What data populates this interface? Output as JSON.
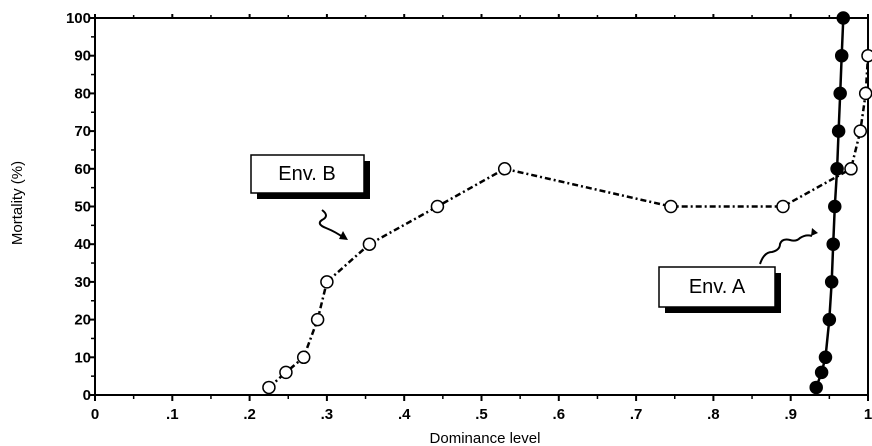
{
  "chart_data": {
    "type": "line",
    "xlabel": "Dominance level",
    "ylabel": "Mortality (%)",
    "xlim": [
      0,
      1
    ],
    "ylim": [
      0,
      100
    ],
    "x_ticks": [
      0,
      0.1,
      0.2,
      0.3,
      0.4,
      0.5,
      0.6,
      0.7,
      0.8,
      0.9,
      1
    ],
    "x_tick_labels": [
      "0",
      ".1",
      ".2",
      ".3",
      ".4",
      ".5",
      ".6",
      ".7",
      ".8",
      ".9",
      "1"
    ],
    "y_ticks": [
      0,
      10,
      20,
      30,
      40,
      50,
      60,
      70,
      80,
      90,
      100
    ],
    "y_tick_labels": [
      "0",
      "10",
      "20",
      "30",
      "40",
      "50",
      "60",
      "70",
      "80",
      "90",
      "100"
    ],
    "grid": false,
    "series": [
      {
        "name": "Env. B",
        "marker": "open-circle",
        "line": "dash-dot",
        "x": [
          0.225,
          0.247,
          0.27,
          0.288,
          0.3,
          0.355,
          0.443,
          0.53,
          0.745,
          0.89,
          0.978,
          0.99,
          0.997,
          1.0
        ],
        "y": [
          2,
          6,
          10,
          20,
          30,
          40,
          50,
          60,
          50,
          50,
          60,
          70,
          80,
          90
        ]
      },
      {
        "name": "Env. A",
        "marker": "filled-circle",
        "line": "solid",
        "x": [
          0.933,
          0.94,
          0.945,
          0.95,
          0.953,
          0.955,
          0.957,
          0.96,
          0.962,
          0.964,
          0.966,
          0.968
        ],
        "y": [
          2,
          6,
          10,
          20,
          30,
          40,
          50,
          60,
          70,
          80,
          90,
          100
        ]
      }
    ],
    "annotations": [
      {
        "text": "Env. B"
      },
      {
        "text": "Env. A"
      }
    ]
  }
}
